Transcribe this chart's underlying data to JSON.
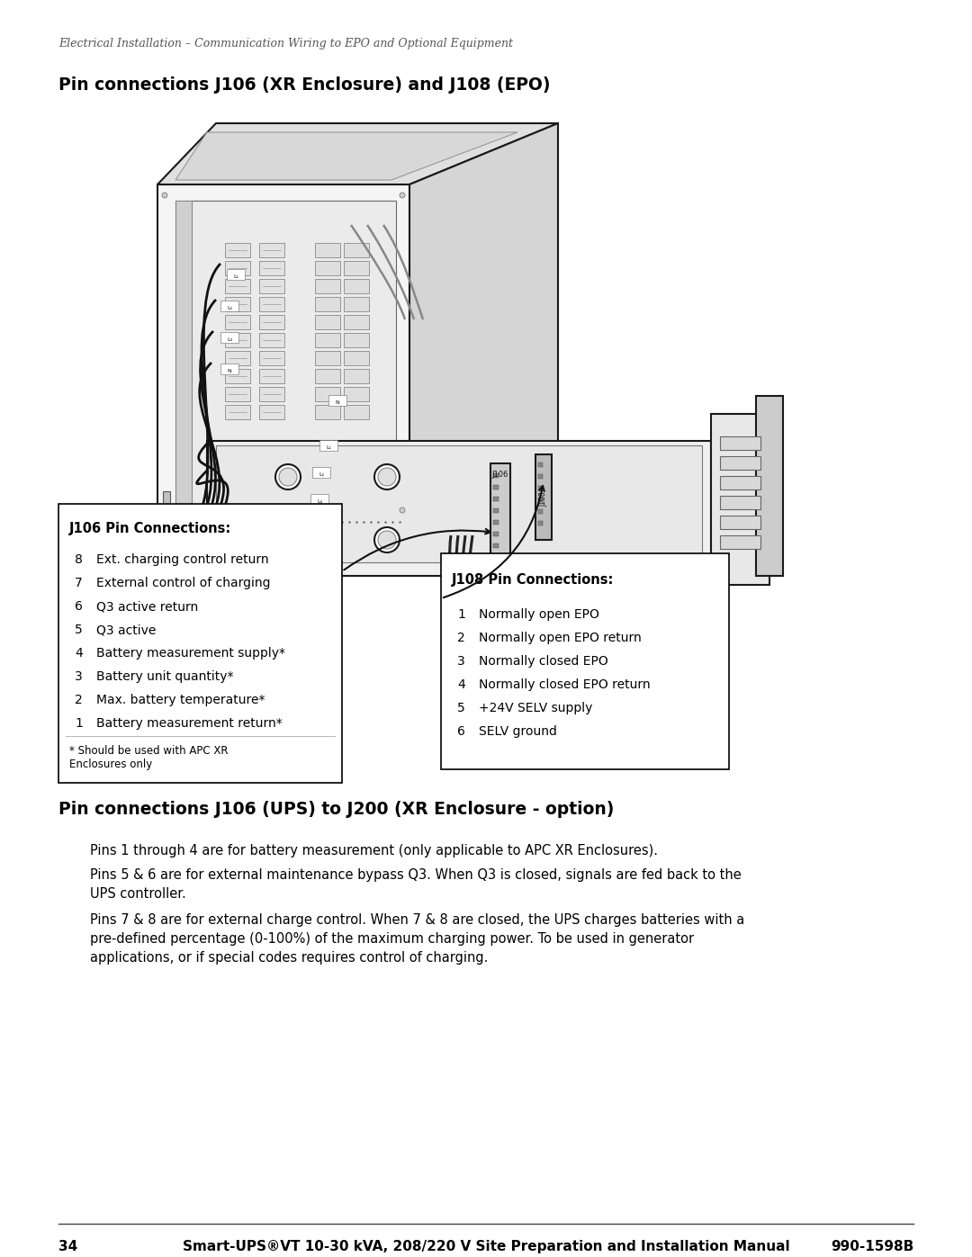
{
  "page_width": 10.8,
  "page_height": 13.97,
  "bg_color": "#ffffff",
  "header_italic": "Electrical Installation – Communication Wiring to EPO and Optional Equipment",
  "section1_title": "Pin connections J106 (XR Enclosure) and J108 (EPO)",
  "section2_title": "Pin connections J106 (UPS) to J200 (XR Enclosure - option)",
  "j106_title": "J106 Pin Connections:",
  "j106_pins": [
    [
      8,
      "Ext. charging control return"
    ],
    [
      7,
      "External control of charging"
    ],
    [
      6,
      "Q3 active return"
    ],
    [
      5,
      "Q3 active"
    ],
    [
      4,
      "Battery measurement supply*"
    ],
    [
      3,
      "Battery unit quantity*"
    ],
    [
      2,
      "Max. battery temperature*"
    ],
    [
      1,
      "Battery measurement return*"
    ]
  ],
  "j106_footnote": "* Should be used with APC XR\nEnclosures only",
  "j108_title": "J108 Pin Connections:",
  "j108_pins": [
    [
      1,
      "Normally open EPO"
    ],
    [
      2,
      "Normally open EPO return"
    ],
    [
      3,
      "Normally closed EPO"
    ],
    [
      4,
      "Normally closed EPO return"
    ],
    [
      5,
      "+24V SELV supply"
    ],
    [
      6,
      "SELV ground"
    ]
  ],
  "body_para1": "Pins 1 through 4 are for battery measurement (only applicable to APC XR Enclosures).",
  "body_para2_l1": "Pins 5 & 6 are for external maintenance bypass Q3. When Q3 is closed, signals are fed back to the",
  "body_para2_l2": "UPS controller.",
  "body_para3_l1": "Pins 7 & 8 are for external charge control. When 7 & 8 are closed, the UPS charges batteries with a",
  "body_para3_l2": "pre-defined percentage (0-100%) of the maximum charging power. To be used in generator",
  "body_para3_l3": "applications, or if special codes requires control of charging.",
  "footer_page": "34",
  "footer_text": "Smart-UPS®VT 10-30 kVA, 208/220 V Site Preparation and Installation Manual",
  "footer_code": "990-1598B",
  "text_color": "#000000",
  "box_border_color": "#000000",
  "box_bg_color": "#ffffff",
  "diagram_line_color": "#1a1a1a",
  "diagram_fill_light": "#e8e8e8",
  "diagram_fill_mid": "#c8c8c8",
  "diagram_fill_dark": "#a0a0a0"
}
